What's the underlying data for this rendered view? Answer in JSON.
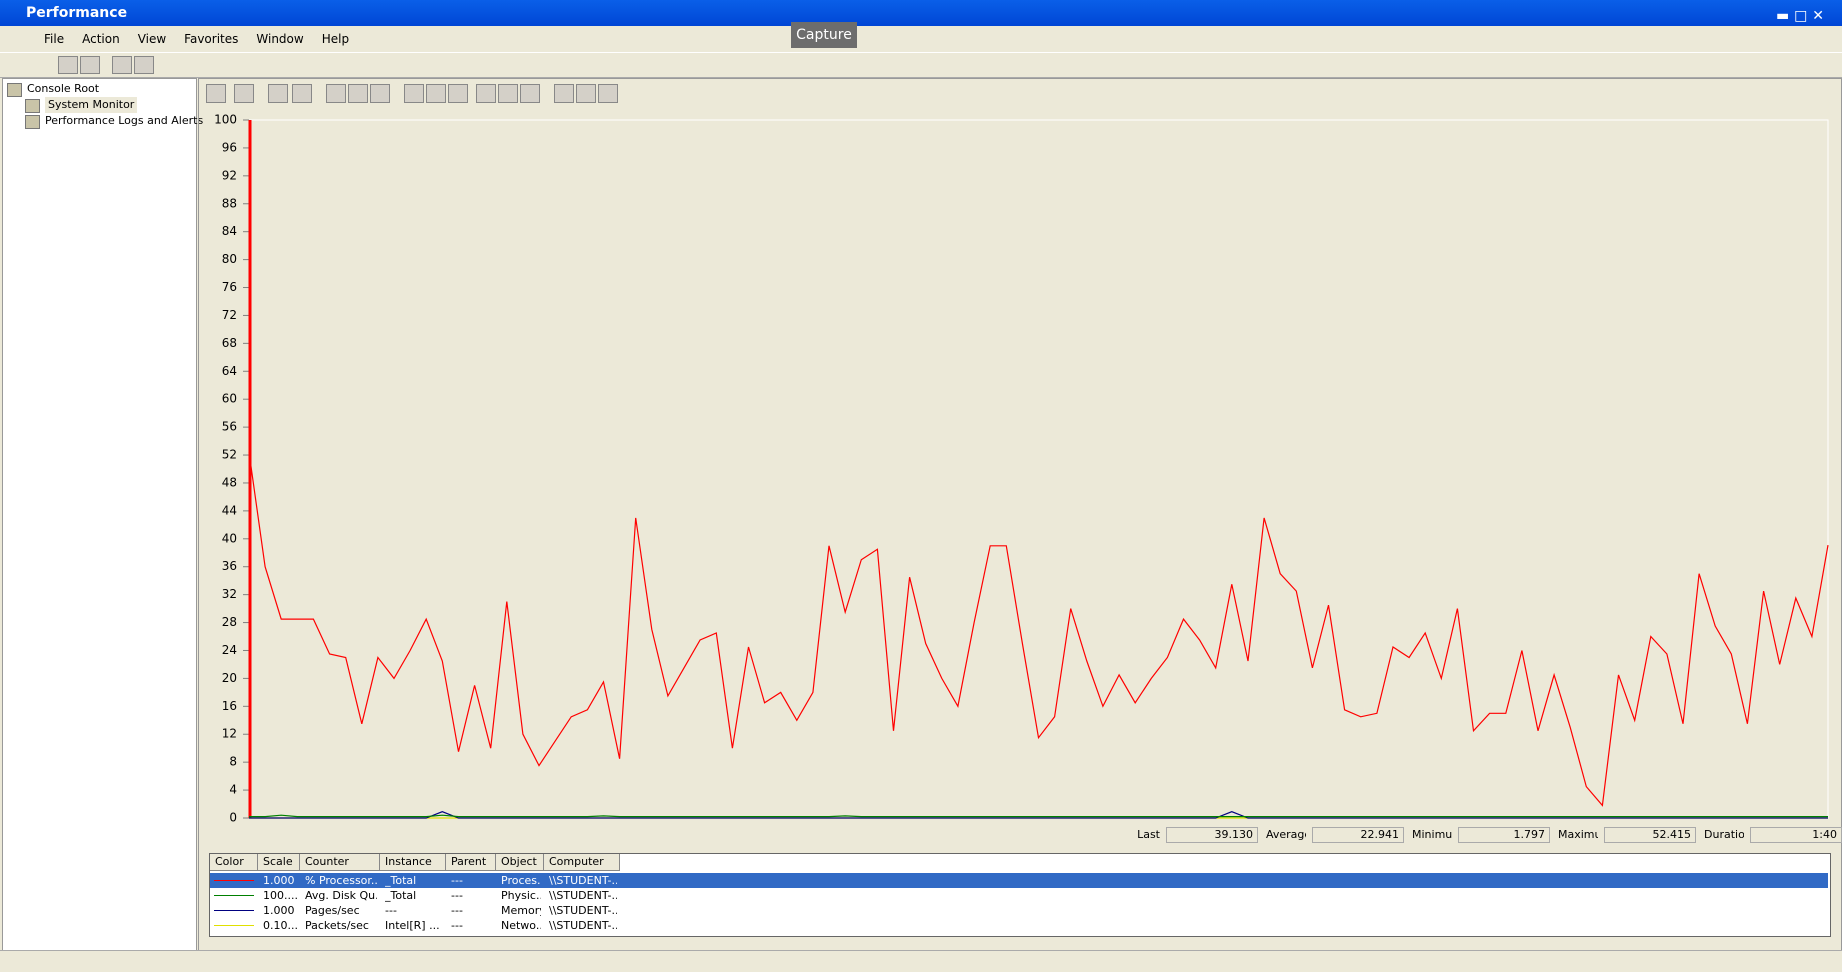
{
  "window": {
    "title": "Performance",
    "tooltip": "Capture"
  },
  "menu": [
    "File",
    "Action",
    "View",
    "Favorites",
    "Window",
    "Help"
  ],
  "tree": [
    "Console Root",
    "System Monitor",
    "Performance Logs and Alerts"
  ],
  "chart_data": {
    "type": "line",
    "ylim": [
      0,
      100
    ],
    "yticks": [
      0,
      4,
      8,
      12,
      16,
      20,
      24,
      28,
      32,
      36,
      40,
      44,
      48,
      52,
      56,
      60,
      64,
      68,
      72,
      76,
      80,
      84,
      88,
      92,
      96,
      100
    ],
    "series": [
      {
        "name": "% Processor Time",
        "color": "#ff0000",
        "values": [
          52.4,
          36,
          28.5,
          28.5,
          28.5,
          23.5,
          23,
          13.5,
          23,
          20,
          24,
          28.5,
          22.5,
          9.5,
          19,
          10,
          31,
          12,
          7.5,
          11,
          14.5,
          15.5,
          19.5,
          8.5,
          43,
          27,
          17.5,
          21.5,
          25.5,
          26.5,
          10,
          24.5,
          16.5,
          18,
          14,
          18,
          39,
          29.5,
          37,
          38.5,
          12.5,
          34.5,
          25,
          20,
          16,
          28,
          39,
          39,
          25,
          11.5,
          14.5,
          30,
          22.5,
          16,
          20.5,
          16.5,
          20,
          23,
          28.5,
          25.5,
          21.5,
          33.5,
          22.5,
          43,
          35,
          32.5,
          21.5,
          30.5,
          15.5,
          14.5,
          15,
          24.5,
          23,
          26.5,
          20,
          30,
          12.5,
          15,
          15,
          24,
          12.5,
          20.5,
          13,
          4.5,
          1.8,
          20.5,
          14,
          26,
          23.5,
          13.5,
          35,
          27.5,
          23.5,
          13.5,
          32.5,
          22,
          31.5,
          26,
          39.1
        ]
      },
      {
        "name": "Avg. Disk Queue Length",
        "color": "#008000",
        "values": [
          0.2,
          0.2,
          0.4,
          0.2,
          0.2,
          0.2,
          0.2,
          0.2,
          0.2,
          0.2,
          0.2,
          0.2,
          0.4,
          0.2,
          0.2,
          0.2,
          0.2,
          0.2,
          0.2,
          0.2,
          0.2,
          0.2,
          0.3,
          0.2,
          0.2,
          0.2,
          0.2,
          0.2,
          0.2,
          0.2,
          0.2,
          0.2,
          0.2,
          0.2,
          0.2,
          0.2,
          0.2,
          0.3,
          0.2,
          0.2,
          0.2,
          0.2,
          0.2,
          0.2,
          0.2,
          0.2,
          0.2,
          0.2,
          0.2,
          0.2,
          0.2,
          0.2,
          0.2,
          0.2,
          0.2,
          0.2,
          0.2,
          0.2,
          0.2,
          0.2,
          0.2,
          0.2,
          0.2,
          0.2,
          0.2,
          0.2,
          0.2,
          0.2,
          0.2,
          0.2,
          0.2,
          0.2,
          0.2,
          0.2,
          0.2,
          0.2,
          0.2,
          0.2,
          0.2,
          0.2,
          0.2,
          0.2,
          0.2,
          0.2,
          0.2,
          0.2,
          0.2,
          0.2,
          0.2,
          0.2,
          0.2,
          0.2,
          0.2,
          0.2,
          0.2,
          0.2,
          0.2,
          0.2,
          0.2
        ]
      },
      {
        "name": "Pages/sec",
        "color": "#000080",
        "values": [
          0,
          0,
          0,
          0,
          0,
          0,
          0,
          0,
          0,
          0,
          0,
          0,
          0.9,
          0,
          0,
          0,
          0,
          0,
          0,
          0,
          0,
          0,
          0,
          0,
          0,
          0,
          0,
          0,
          0,
          0,
          0,
          0,
          0,
          0,
          0,
          0,
          0,
          0,
          0,
          0,
          0,
          0,
          0,
          0,
          0,
          0,
          0,
          0,
          0,
          0,
          0,
          0,
          0,
          0,
          0,
          0,
          0,
          0,
          0,
          0,
          0,
          0.9,
          0,
          0,
          0,
          0,
          0,
          0,
          0,
          0,
          0,
          0,
          0,
          0,
          0,
          0,
          0,
          0,
          0,
          0,
          0,
          0,
          0,
          0,
          0,
          0,
          0,
          0,
          0,
          0,
          0,
          0,
          0,
          0,
          0,
          0,
          0,
          0,
          0
        ]
      },
      {
        "name": "Packets/sec",
        "color": "#e0e000",
        "values": [
          0,
          0,
          0,
          0,
          0,
          0,
          0,
          0,
          0,
          0,
          0,
          0,
          0,
          0,
          0,
          0,
          0,
          0,
          0,
          0,
          0,
          0,
          0,
          0,
          0,
          0,
          0,
          0,
          0,
          0,
          0,
          0,
          0,
          0,
          0,
          0,
          0,
          0,
          0,
          0,
          0,
          0,
          0,
          0,
          0,
          0,
          0,
          0,
          0,
          0,
          0,
          0,
          0,
          0,
          0,
          0,
          0,
          0,
          0,
          0,
          0,
          0,
          0,
          0,
          0,
          0,
          0,
          0,
          0,
          0,
          0,
          0,
          0,
          0,
          0,
          0,
          0,
          0,
          0,
          0,
          0,
          0,
          0,
          0,
          0,
          0,
          0,
          0,
          0,
          0,
          0,
          0,
          0,
          0,
          0,
          0,
          0,
          0,
          0
        ]
      }
    ]
  },
  "stats": [
    {
      "label": "Last",
      "value": "39.130"
    },
    {
      "label": "Average",
      "value": "22.941"
    },
    {
      "label": "Minimum",
      "value": "1.797"
    },
    {
      "label": "Maximum",
      "value": "52.415"
    },
    {
      "label": "Duration",
      "value": "1:40"
    }
  ],
  "table": {
    "columns": [
      "Color",
      "Scale",
      "Counter",
      "Instance",
      "Parent",
      "Object",
      "Computer"
    ],
    "rows": [
      [
        "1.000",
        "% Processor...",
        "_Total",
        "---",
        "Proces...",
        "\\\\STUDENT-..."
      ],
      [
        "100....",
        "Avg. Disk Qu...",
        "_Total",
        "---",
        "Physic...",
        "\\\\STUDENT-..."
      ],
      [
        "1.000",
        "Pages/sec",
        "---",
        "---",
        "Memory",
        "\\\\STUDENT-..."
      ],
      [
        "0.10...",
        "Packets/sec",
        "Intel[R] ...",
        "---",
        "Netwo...",
        "\\\\STUDENT-..."
      ]
    ]
  }
}
